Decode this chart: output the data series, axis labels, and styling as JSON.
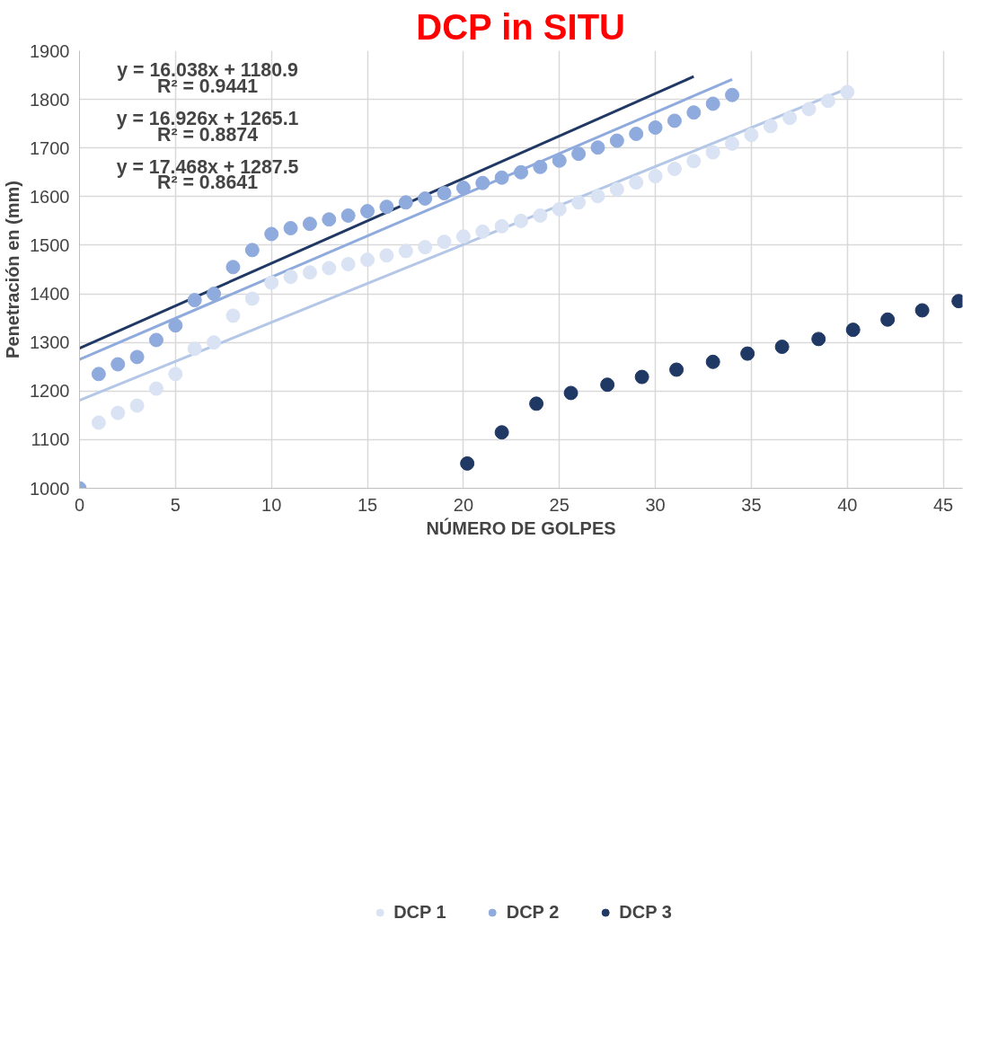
{
  "chart_data": {
    "type": "scatter",
    "title": "DCP in SITU",
    "xlabel": "NÚMERO DE GOLPES",
    "ylabel": "Penetración en (mm)",
    "xlim": [
      0,
      46
    ],
    "xticks": [
      0,
      5,
      10,
      15,
      20,
      25,
      30,
      35,
      40,
      45
    ],
    "ylim": [
      1000,
      1900
    ],
    "yticks": [
      1000,
      1100,
      1200,
      1300,
      1400,
      1500,
      1600,
      1700,
      1800,
      1900
    ],
    "grid": true,
    "legend": "bottom",
    "marker": "circle",
    "annotations": [
      "y = 16.038x + 1180.9",
      "R² = 0.9441",
      "y = 16.926x + 1265.1",
      "R² = 0.8874",
      "y = 17.468x + 1287.5",
      "R² = 0.8641"
    ],
    "series": [
      {
        "name": "DCP 1",
        "color": "#dae3f3",
        "x": [
          1,
          2,
          3,
          4,
          5,
          6,
          7,
          8,
          9,
          10,
          11,
          12,
          13,
          14,
          15,
          16,
          17,
          18,
          19,
          20,
          21,
          22,
          23,
          24,
          25,
          26,
          27,
          28,
          29,
          30,
          31,
          32,
          33,
          34,
          35,
          36,
          37,
          38,
          39,
          40
        ],
        "values": [
          1135,
          1155,
          1170,
          1205,
          1235,
          1287,
          1300,
          1355,
          1390,
          1423,
          1435,
          1444,
          1453,
          1461,
          1470,
          1479,
          1488,
          1496,
          1507,
          1518,
          1528,
          1539,
          1550,
          1561,
          1574,
          1588,
          1601,
          1615,
          1629,
          1642,
          1657,
          1673,
          1691,
          1709,
          1727,
          1745,
          1762,
          1780,
          1797,
          1815
        ]
      },
      {
        "name": "DCP 2",
        "color": "#8faadc",
        "x": [
          0,
          1,
          2,
          3,
          4,
          5,
          6,
          7,
          8,
          9,
          10,
          11,
          12,
          13,
          14,
          15,
          16,
          17,
          18,
          19,
          20,
          21,
          22,
          23,
          24,
          25,
          26,
          27,
          28,
          29,
          30,
          31,
          32,
          33,
          34
        ],
        "values": [
          1000,
          1235,
          1255,
          1270,
          1305,
          1335,
          1387,
          1400,
          1455,
          1490,
          1523,
          1535,
          1544,
          1553,
          1561,
          1570,
          1579,
          1588,
          1596,
          1607,
          1618,
          1628,
          1639,
          1650,
          1661,
          1674,
          1688,
          1701,
          1715,
          1729,
          1742,
          1756,
          1773,
          1791,
          1809
        ]
      },
      {
        "name": "DCP 3",
        "color": "#203864",
        "x": [
          20.2,
          22.0,
          23.8,
          25.6,
          27.5,
          29.3,
          31.1,
          33.0,
          34.8,
          36.6,
          38.5,
          40.3,
          42.1,
          43.9,
          45.8
        ],
        "values": [
          1051,
          1115,
          1174,
          1196,
          1213,
          1229,
          1244,
          1260,
          1277,
          1291,
          1307,
          1326,
          1347,
          1366,
          1385
        ]
      },
      {
        "type": "line",
        "marker": "none",
        "color": "#b4c7e7",
        "x": [
          0,
          40
        ],
        "values": [
          1181,
          1822
        ]
      },
      {
        "type": "line",
        "marker": "none",
        "color": "#8faadc",
        "x": [
          0,
          34
        ],
        "values": [
          1265,
          1841
        ]
      },
      {
        "type": "line",
        "marker": "none",
        "color": "#203864",
        "x": [
          0,
          32
        ],
        "values": [
          1288,
          1847
        ]
      }
    ]
  }
}
